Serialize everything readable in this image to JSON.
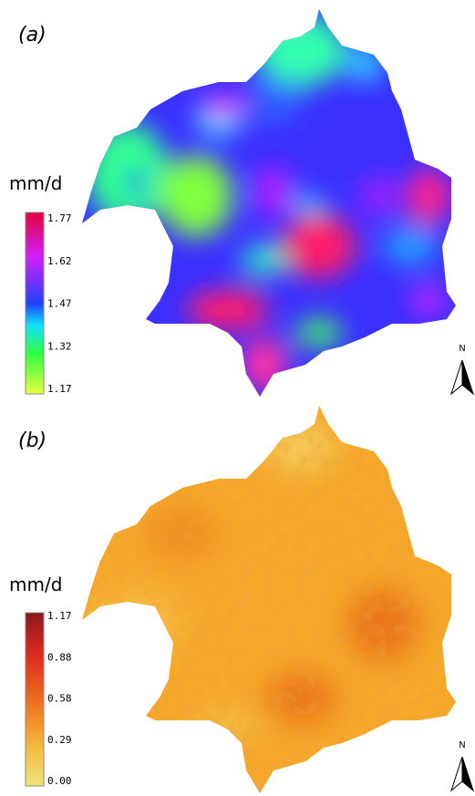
{
  "panels": [
    {
      "label": "(a)",
      "unit": "mm/d",
      "ticks": [
        "1.77",
        "1.62",
        "1.47",
        "1.32",
        "1.17"
      ],
      "north": "N"
    },
    {
      "label": "(b)",
      "unit": "mm/d",
      "ticks": [
        "1.17",
        "0.88",
        "0.58",
        "0.29",
        "0.00"
      ],
      "north": "N"
    }
  ]
}
